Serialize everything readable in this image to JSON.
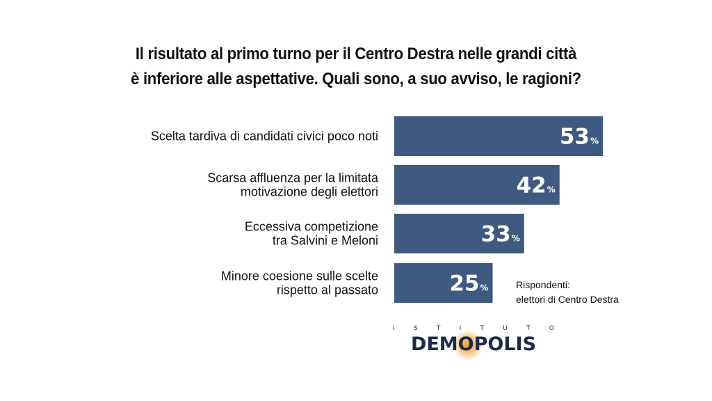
{
  "title_lines": [
    "Il risultato al primo turno per il Centro Destra nelle grandi città",
    "è inferiore alle aspettative. Quali sono, a suo avviso, le ragioni?"
  ],
  "chart_data": {
    "type": "bar",
    "orientation": "horizontal",
    "categories": [
      [
        "Scelta tardiva di candidati civici poco noti"
      ],
      [
        "Scarsa affluenza per la limitata",
        "motivazione degli elettori"
      ],
      [
        "Eccessiva competizione",
        "tra Salvini e Meloni"
      ],
      [
        "Minore coesione sulle scelte",
        "rispetto al passato"
      ]
    ],
    "values": [
      53,
      42,
      33,
      25
    ],
    "value_suffix": "%",
    "bar_color": "#3f5a80",
    "value_label_color": "#ffffff",
    "grid": false,
    "legend": "none"
  },
  "note_lines": [
    "Rispondenti:",
    "elettori di Centro Destra"
  ],
  "logo": {
    "top_word": "ISTITUTO",
    "main_word": "DEMOPOLIS",
    "color": "#1b2a4a",
    "accent": "#ec9628"
  }
}
